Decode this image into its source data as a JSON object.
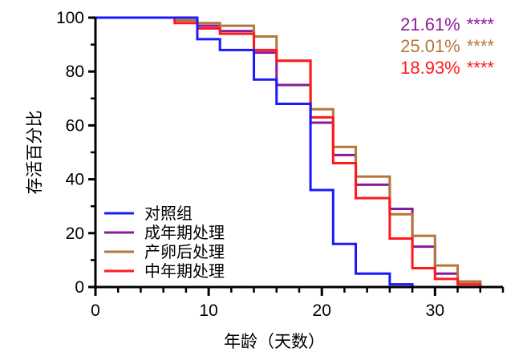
{
  "chart_data": {
    "type": "line",
    "step": true,
    "xlabel": "年龄（天数）",
    "ylabel": "存活百分比",
    "xlim": [
      0,
      36
    ],
    "ylim": [
      0,
      100
    ],
    "xticks": [
      0,
      10,
      20,
      30
    ],
    "yticks": [
      0,
      20,
      40,
      60,
      80,
      100
    ],
    "grid": false,
    "legend_position": "bottom-left",
    "series": [
      {
        "name": "对照组",
        "color": "#1a1aff",
        "x": [
          0,
          9,
          11,
          14,
          16,
          19,
          21,
          23,
          26,
          28
        ],
        "y": [
          100,
          92,
          88,
          77,
          68,
          36,
          16,
          5,
          1,
          0
        ]
      },
      {
        "name": "成年期处理",
        "color": "#8b1a9b",
        "x": [
          0,
          7,
          9,
          11,
          14,
          16,
          19,
          21,
          23,
          26,
          28,
          30,
          32,
          34
        ],
        "y": [
          100,
          99,
          97,
          95,
          87,
          75,
          61,
          49,
          38,
          29,
          15,
          5,
          2,
          0
        ]
      },
      {
        "name": "产卵后处理",
        "color": "#b5763a",
        "x": [
          0,
          7,
          9,
          11,
          14,
          16,
          19,
          21,
          23,
          26,
          28,
          30,
          32,
          34
        ],
        "y": [
          100,
          99,
          98,
          97,
          93,
          84,
          66,
          52,
          41,
          27,
          19,
          8,
          2,
          0
        ]
      },
      {
        "name": "中年期处理",
        "color": "#ff1a1a",
        "x": [
          0,
          7,
          9,
          11,
          14,
          16,
          19,
          21,
          23,
          26,
          28,
          30,
          32,
          34
        ],
        "y": [
          100,
          98,
          96,
          94,
          88,
          84,
          63,
          46,
          33,
          18,
          7,
          3,
          1,
          0
        ]
      }
    ],
    "annotations": [
      {
        "text": "21.61%",
        "stars": "****",
        "color": "#8b1a9b"
      },
      {
        "text": "25.01%",
        "stars": "****",
        "color": "#b5763a"
      },
      {
        "text": "18.93%",
        "stars": "****",
        "color": "#ff1a1a"
      }
    ]
  }
}
